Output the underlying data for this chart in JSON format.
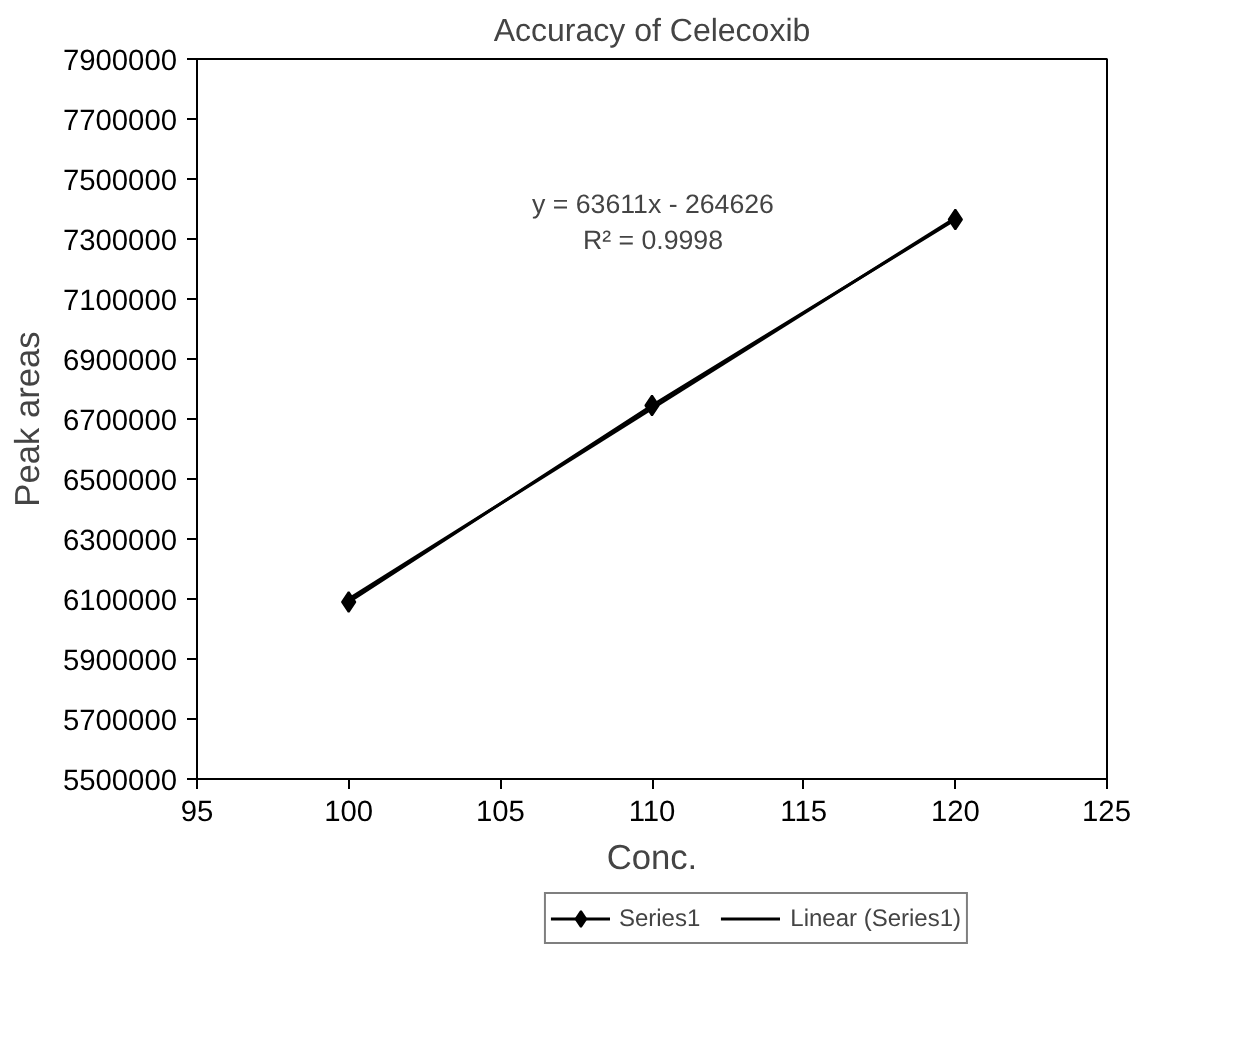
{
  "chart_data": {
    "type": "line",
    "title": "Accuracy of Celecoxib",
    "xlabel": "Conc.",
    "ylabel": "Peak areas",
    "x": [
      100,
      110,
      120
    ],
    "series": [
      {
        "name": "Series1",
        "color": "#000000",
        "values": [
          6090000,
          6745000,
          7365000
        ],
        "marker": "diamond"
      },
      {
        "name": "Linear (Series1)",
        "color": "#000000",
        "type": "line",
        "x": [
          100,
          120
        ],
        "values": [
          6100000,
          7370000
        ],
        "marker": "none"
      }
    ],
    "xlim": [
      95,
      125
    ],
    "xticks": [
      95,
      100,
      105,
      110,
      115,
      120,
      125
    ],
    "ylim": [
      5500000,
      7900000
    ],
    "yticks": [
      5500000,
      5700000,
      5900000,
      6100000,
      6300000,
      6500000,
      6700000,
      6900000,
      7100000,
      7300000,
      7500000,
      7700000,
      7900000
    ],
    "annotations": [
      "y = 63611x - 264626",
      "R² = 0.9998"
    ],
    "grid": false,
    "legend": "bottom",
    "line_style": "solid"
  }
}
